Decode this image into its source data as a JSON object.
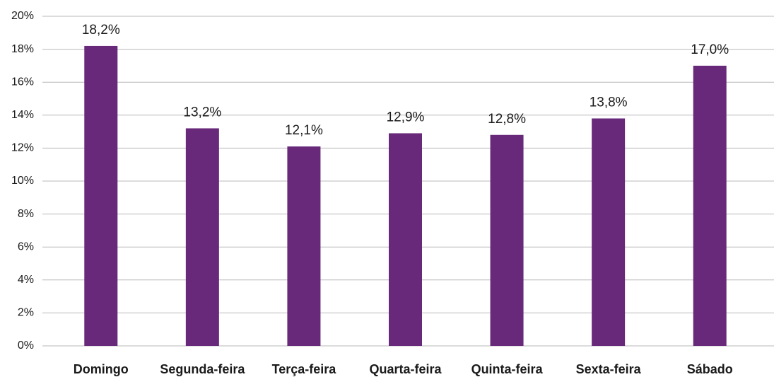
{
  "chart_data": {
    "type": "bar",
    "categories": [
      "Domingo",
      "Segunda-feira",
      "Terça-feira",
      "Quarta-feira",
      "Quinta-feira",
      "Sexta-feira",
      "Sábado"
    ],
    "values": [
      18.2,
      13.2,
      12.1,
      12.9,
      12.8,
      13.8,
      17.0
    ],
    "value_labels": [
      "18,2%",
      "13,2%",
      "12,1%",
      "12,9%",
      "12,8%",
      "13,8%",
      "17,0%"
    ],
    "color": "#68297a",
    "ylim": [
      0,
      20
    ],
    "yticks": [
      {
        "value": 0,
        "label": "0%"
      },
      {
        "value": 2,
        "label": "2%"
      },
      {
        "value": 4,
        "label": "4%"
      },
      {
        "value": 6,
        "label": "6%"
      },
      {
        "value": 8,
        "label": "8%"
      },
      {
        "value": 10,
        "label": "10%"
      },
      {
        "value": 12,
        "label": "12%"
      },
      {
        "value": 14,
        "label": "14%"
      },
      {
        "value": 16,
        "label": "16%"
      },
      {
        "value": 18,
        "label": "18%"
      },
      {
        "value": 20,
        "label": "20%"
      }
    ],
    "grid": true
  }
}
